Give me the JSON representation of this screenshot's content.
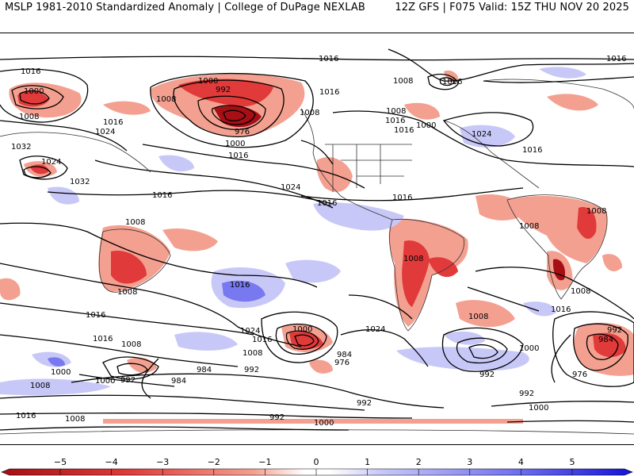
{
  "header": {
    "title_left": "MSLP 1981-2010 Standardized Anomaly | College of DuPage NEXLAB",
    "title_right": "12Z GFS | F075 Valid: 15Z THU NOV 20 2025"
  },
  "contour_labels": [
    {
      "name": "isobar-label-1016-a",
      "text": "1016"
    },
    {
      "name": "isobar-label-1016-b",
      "text": "1016"
    },
    {
      "name": "isobar-label-1016-c",
      "text": "1016"
    },
    {
      "name": "isobar-label-1008-a",
      "text": "1008"
    },
    {
      "name": "isobar-label-1000-a",
      "text": "1000"
    },
    {
      "name": "isobar-label-1000-b",
      "text": "1000"
    },
    {
      "name": "isobar-label-992-a",
      "text": "992"
    },
    {
      "name": "isobar-label-1008-b",
      "text": "1008"
    },
    {
      "name": "isobar-label-1016-d",
      "text": "1016"
    },
    {
      "name": "isobar-label-1024-a",
      "text": "1024"
    },
    {
      "name": "isobar-label-1008-c",
      "text": "1008"
    },
    {
      "name": "isobar-label-1032-a",
      "text": "1032"
    },
    {
      "name": "isobar-label-1024-b",
      "text": "1024"
    },
    {
      "name": "isobar-label-1016-e",
      "text": "1016"
    },
    {
      "name": "isobar-label-1032-b",
      "text": "1032"
    },
    {
      "name": "isobar-label-976-a",
      "text": "976"
    },
    {
      "name": "isobar-label-1000-c",
      "text": "1000"
    },
    {
      "name": "isobar-label-1016-f",
      "text": "1016"
    },
    {
      "name": "isobar-label-1008-d",
      "text": "1008"
    },
    {
      "name": "isobar-label-1016-g",
      "text": "1016"
    },
    {
      "name": "isobar-label-1008-e",
      "text": "1008"
    },
    {
      "name": "isobar-label-1016-h",
      "text": "1016"
    },
    {
      "name": "isobar-label-1000-d",
      "text": "1000"
    },
    {
      "name": "isobar-label-1016-i",
      "text": "1016"
    },
    {
      "name": "isobar-label-1024-c",
      "text": "1024"
    },
    {
      "name": "isobar-label-1016-j",
      "text": "1016"
    },
    {
      "name": "isobar-label-1024-d",
      "text": "1024"
    },
    {
      "name": "isobar-label-1016-k",
      "text": "1016"
    },
    {
      "name": "isobar-label-1016-l",
      "text": "1016"
    },
    {
      "name": "isobar-label-1008-f",
      "text": "1008"
    },
    {
      "name": "isobar-label-1016-m",
      "text": "1016"
    },
    {
      "name": "isobar-label-1008-g",
      "text": "1008"
    },
    {
      "name": "isobar-label-1008-h",
      "text": "1008"
    },
    {
      "name": "isobar-label-1008-i",
      "text": "1008"
    },
    {
      "name": "isobar-label-1008-j",
      "text": "1008"
    },
    {
      "name": "isobar-label-1016-n",
      "text": "1016"
    },
    {
      "name": "isobar-label-1008-k",
      "text": "1008"
    },
    {
      "name": "isobar-label-1016-o",
      "text": "1016"
    },
    {
      "name": "isobar-label-1016-p",
      "text": "1016"
    },
    {
      "name": "isobar-label-1024-e",
      "text": "1024"
    },
    {
      "name": "isobar-label-1000-e",
      "text": "1000"
    },
    {
      "name": "isobar-label-1024-f",
      "text": "1024"
    },
    {
      "name": "isobar-label-1016-q",
      "text": "1016"
    },
    {
      "name": "isobar-label-1008-l",
      "text": "1008"
    },
    {
      "name": "isobar-label-1008-m",
      "text": "1008"
    },
    {
      "name": "isobar-label-1016-r",
      "text": "1016"
    },
    {
      "name": "isobar-label-1008-n",
      "text": "1008"
    },
    {
      "name": "isobar-label-984-a",
      "text": "984"
    },
    {
      "name": "isobar-label-976-b",
      "text": "976"
    },
    {
      "name": "isobar-label-984-b",
      "text": "984"
    },
    {
      "name": "isobar-label-992-b",
      "text": "992"
    },
    {
      "name": "isobar-label-1000-f",
      "text": "1000"
    },
    {
      "name": "isobar-label-1000-g",
      "text": "1000"
    },
    {
      "name": "isobar-label-992-c",
      "text": "992"
    },
    {
      "name": "isobar-label-984-c",
      "text": "984"
    },
    {
      "name": "isobar-label-1008-o",
      "text": "1008"
    },
    {
      "name": "isobar-label-1000-h",
      "text": "1000"
    },
    {
      "name": "isobar-label-992-d",
      "text": "992"
    },
    {
      "name": "isobar-label-992-e",
      "text": "992"
    },
    {
      "name": "isobar-label-984-d",
      "text": "984"
    },
    {
      "name": "isobar-label-976-c",
      "text": "976"
    },
    {
      "name": "isobar-label-992-f",
      "text": "992"
    },
    {
      "name": "isobar-label-992-g",
      "text": "992"
    },
    {
      "name": "isobar-label-1000-i",
      "text": "1000"
    },
    {
      "name": "isobar-label-1016-s",
      "text": "1016"
    },
    {
      "name": "isobar-label-1008-p",
      "text": "1008"
    },
    {
      "name": "isobar-label-992-h",
      "text": "992"
    },
    {
      "name": "isobar-label-1000-j",
      "text": "1000"
    }
  ],
  "colorbar": {
    "ticks": [
      "−5",
      "−4",
      "−3",
      "−2",
      "−1",
      "0",
      "1",
      "2",
      "3",
      "4",
      "5"
    ],
    "colors": {
      "strong_neg": "#a50f15",
      "mid_neg": "#e03a3a",
      "weak_neg": "#f4a090",
      "neutral": "#ffffff",
      "weak_pos": "#c8c8f8",
      "mid_pos": "#7878f0",
      "strong_pos": "#1414d8"
    }
  }
}
